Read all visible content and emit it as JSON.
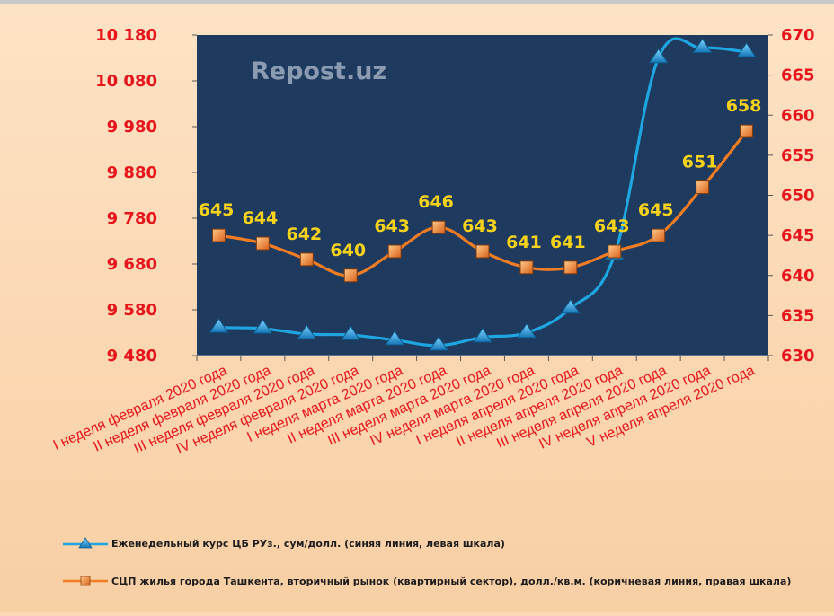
{
  "watermark": "Repost.uz",
  "chart_data": {
    "type": "line",
    "categories": [
      "I неделя февраля 2020 года",
      "II неделя февраля 2020 года",
      "III неделя февраля 2020 года",
      "IV неделя февраля 2020 года",
      "I неделя марта 2020 года",
      "II неделя марта 2020 года",
      "III неделя марта 2020 года",
      "IV неделя марта 2020 года",
      "I неделя апреля 2020 года",
      "II неделя апреля 2020 года",
      "III неделя апреля 2020 года",
      "IV неделя апреля 2020 года",
      "V неделя апреля 2020 года"
    ],
    "series": [
      {
        "name": "Еженедельный курс ЦБ РУз., сум/долл.  (синяя линия, левая шкала)",
        "axis": "left",
        "color": "#1fa6e0",
        "marker": "triangle",
        "values": [
          9541,
          9539,
          9527,
          9525,
          9514,
          9502,
          9520,
          9530,
          9583,
          9700,
          10130,
          10152,
          10143
        ]
      },
      {
        "name": "СЦП жилья города  Ташкента, вторичный рынок (квартирный сектор),  долл./кв.м.  (коричневая линия, правая шкала)",
        "axis": "right",
        "color": "#f07d23",
        "marker": "square",
        "values": [
          645,
          644,
          642,
          640,
          643,
          646,
          643,
          641,
          641,
          643,
          645,
          651,
          658
        ],
        "labels": [
          "645",
          "644",
          "642",
          "640",
          "643",
          "646",
          "643",
          "641",
          "641",
          "643",
          "645",
          "651",
          "658"
        ]
      }
    ],
    "y_left": {
      "range": [
        9480,
        10180
      ],
      "ticks": [
        9480,
        9580,
        9680,
        9780,
        9880,
        9980,
        10080,
        10180
      ],
      "tick_labels": [
        "9 480",
        "9 580",
        "9 680",
        "9 780",
        "9 880",
        "9 980",
        "10 080",
        "10 180"
      ],
      "color": "#e8141b"
    },
    "y_right": {
      "range": [
        630,
        670
      ],
      "ticks": [
        630,
        635,
        640,
        645,
        650,
        655,
        660,
        665,
        670
      ],
      "tick_labels": [
        "630",
        "635",
        "640",
        "645",
        "650",
        "655",
        "660",
        "665",
        "670"
      ],
      "color": "#e8141b"
    },
    "plot_background": "#1f3a5f",
    "data_label_color": "#f6d21a",
    "category_label_color": "#e8141b",
    "grid": false,
    "legend_placement": "bottom"
  }
}
